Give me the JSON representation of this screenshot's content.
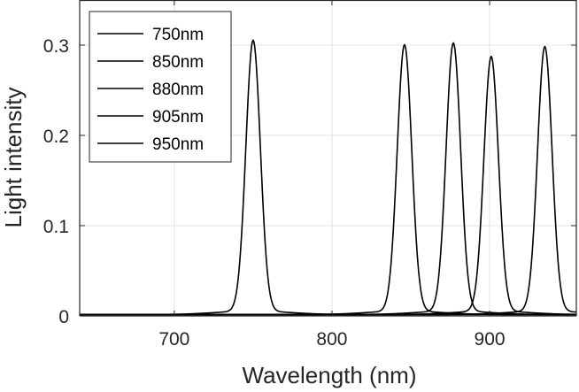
{
  "chart_data": {
    "type": "line",
    "title": "",
    "xlabel": "Wavelength (nm)",
    "ylabel": "Light intensity",
    "xlim": [
      640,
      955
    ],
    "ylim": [
      0,
      0.35
    ],
    "x_ticks": [
      700,
      800,
      900
    ],
    "x_tick_labels": [
      "700",
      "800",
      "900"
    ],
    "y_ticks": [
      0,
      0.1,
      0.2,
      0.3
    ],
    "y_tick_labels": [
      "0",
      "0.1",
      "0.2",
      "0.3"
    ],
    "grid": true,
    "legend_position": "top-left",
    "line_color": "#000000",
    "series": [
      {
        "name": "750nm",
        "peak_x": 750,
        "peak_y": 0.3
      },
      {
        "name": "850nm",
        "peak_x": 846,
        "peak_y": 0.295
      },
      {
        "name": "880nm",
        "peak_x": 877,
        "peak_y": 0.297
      },
      {
        "name": "905nm",
        "peak_x": 901,
        "peak_y": 0.282
      },
      {
        "name": "950nm",
        "peak_x": 935,
        "peak_y": 0.293
      }
    ]
  }
}
